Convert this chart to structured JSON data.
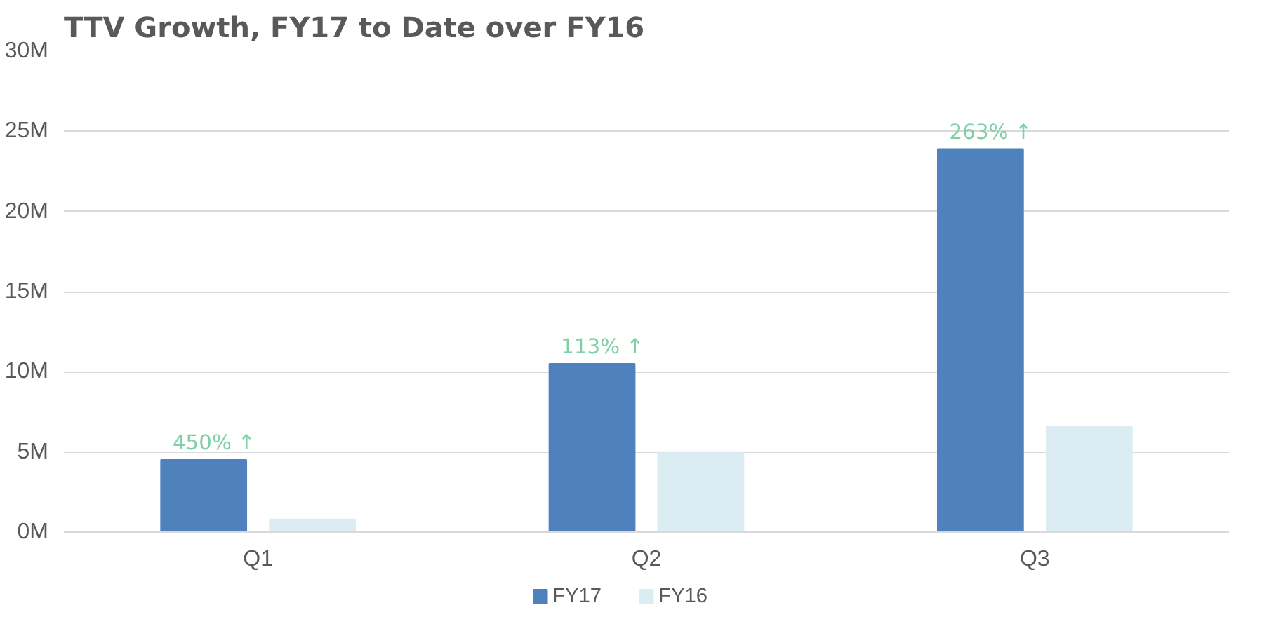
{
  "chart_data": {
    "type": "bar",
    "title": "TTV Growth, FY17 to Date over FY16",
    "categories": [
      "Q1",
      "Q2",
      "Q3"
    ],
    "series": [
      {
        "name": "FY17",
        "color": "#4f81bd",
        "values": [
          4.5,
          10.5,
          23.9
        ]
      },
      {
        "name": "FY16",
        "color": "#dbecf2",
        "values": [
          0.8,
          5.0,
          6.6
        ]
      }
    ],
    "ylim": [
      0,
      30
    ],
    "yticks": [
      {
        "value": 0,
        "label": "0M"
      },
      {
        "value": 5,
        "label": "5M"
      },
      {
        "value": 10,
        "label": "10M"
      },
      {
        "value": 15,
        "label": "15M"
      },
      {
        "value": 20,
        "label": "20M"
      },
      {
        "value": 25,
        "label": "25M"
      },
      {
        "value": 30,
        "label": "30M"
      }
    ],
    "grid": "y",
    "legend": "bottom",
    "annotations": [
      "450% ↑",
      "113% ↑",
      "263% ↑"
    ]
  }
}
